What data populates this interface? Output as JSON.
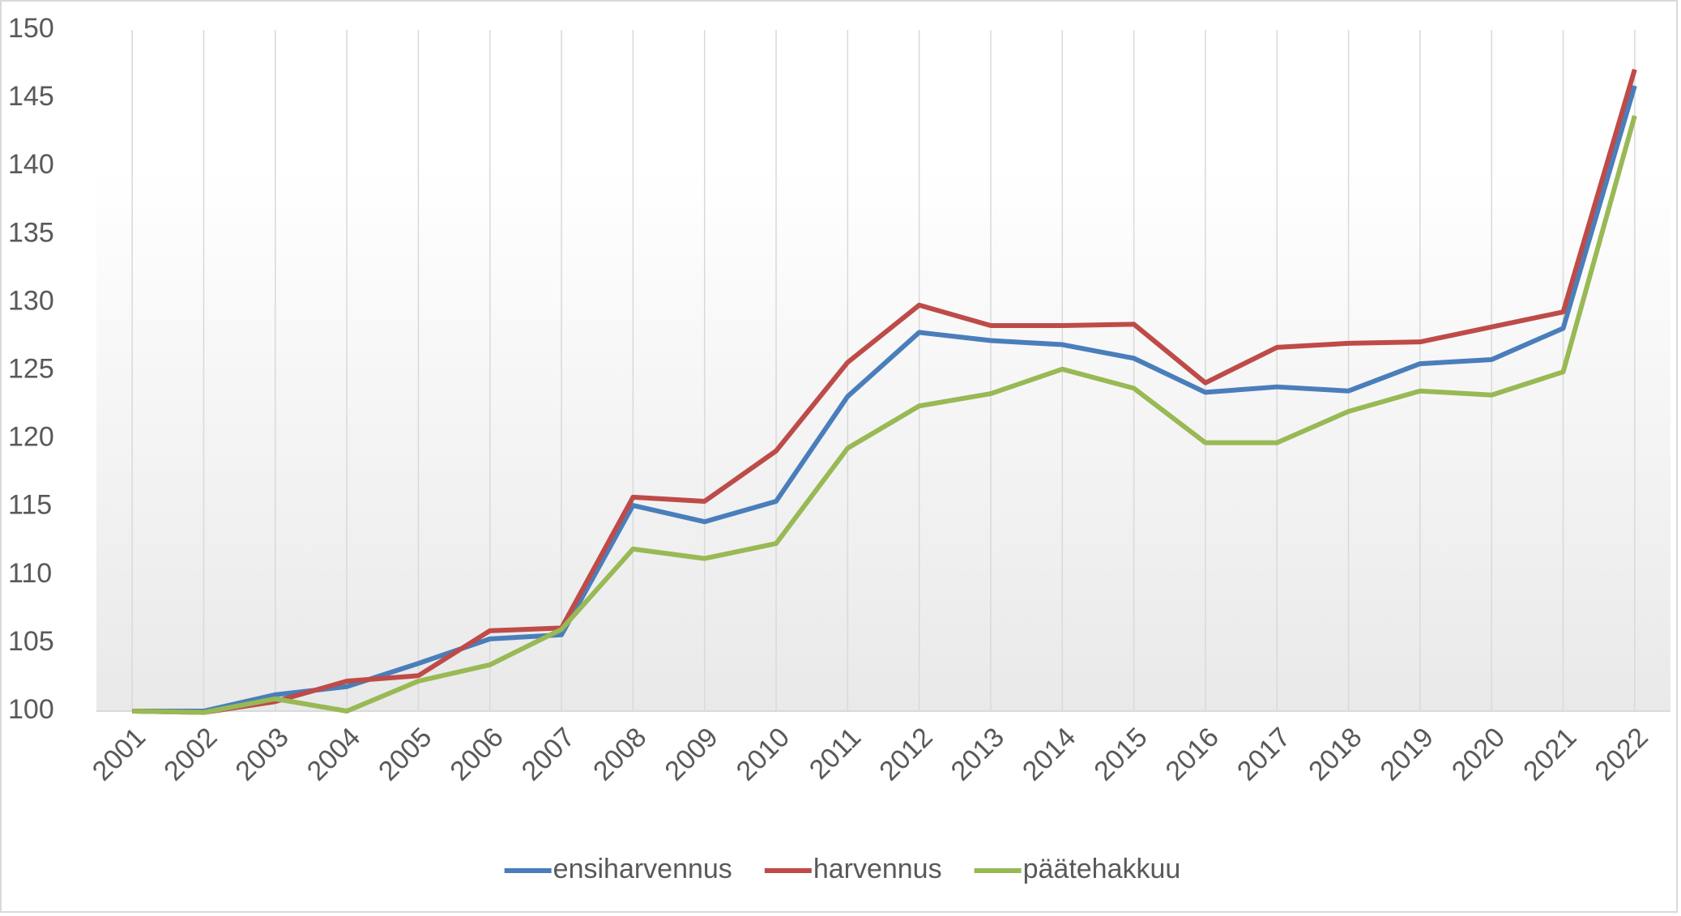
{
  "chart_data": {
    "type": "line",
    "categories": [
      "2001",
      "2002",
      "2003",
      "2004",
      "2005",
      "2006",
      "2007",
      "2008",
      "2009",
      "2010",
      "2011",
      "2012",
      "2013",
      "2014",
      "2015",
      "2016",
      "2017",
      "2018",
      "2019",
      "2020",
      "2021",
      "2022"
    ],
    "series": [
      {
        "name": "ensiharvennus",
        "color": "#4a7ebb",
        "values": [
          100,
          100,
          101.2,
          101.8,
          103.5,
          105.3,
          105.6,
          115.1,
          113.9,
          115.4,
          123.1,
          127.8,
          127.2,
          126.9,
          125.9,
          123.4,
          123.8,
          123.5,
          125.5,
          125.8,
          128.1,
          145.9
        ]
      },
      {
        "name": "harvennus",
        "color": "#be4b48",
        "values": [
          100,
          99.9,
          100.7,
          102.2,
          102.6,
          105.9,
          106.1,
          115.7,
          115.4,
          119.1,
          125.6,
          129.8,
          128.3,
          128.3,
          128.4,
          124.1,
          126.7,
          127.0,
          127.1,
          128.2,
          129.3,
          147.1
        ]
      },
      {
        "name": "päätehakkuu",
        "color": "#98b954",
        "values": [
          100,
          99.9,
          100.9,
          100,
          102.2,
          103.4,
          106.0,
          111.9,
          111.2,
          112.3,
          119.3,
          122.4,
          123.3,
          125.1,
          123.7,
          119.7,
          119.7,
          122.0,
          123.5,
          123.2,
          124.9,
          143.7
        ]
      }
    ],
    "ylim": [
      100,
      150
    ],
    "yticks": [
      100,
      105,
      110,
      115,
      120,
      125,
      130,
      135,
      140,
      145,
      150
    ],
    "grid": "x",
    "legend": "bottom"
  }
}
